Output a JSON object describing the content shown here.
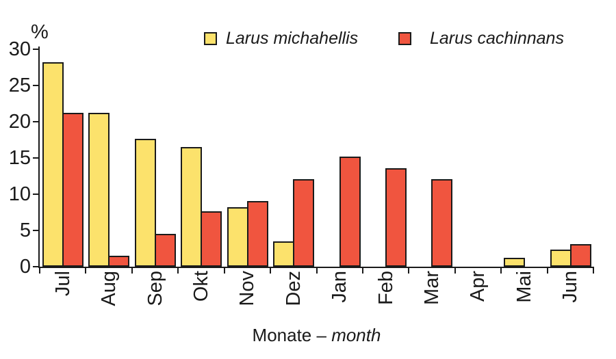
{
  "chart_data": {
    "type": "bar",
    "title": "",
    "ylabel": "%",
    "xlabel": {
      "text": "Monate – month",
      "regular": "Monate –",
      "italic": "month"
    },
    "categories": [
      "Jul",
      "Aug",
      "Sep",
      "Okt",
      "Nov",
      "Dez",
      "Jan",
      "Feb",
      "Mar",
      "Apr",
      "Mai",
      "Jun"
    ],
    "series": [
      {
        "name": "Larus michahellis",
        "color": "#FCE26C",
        "values": [
          28.2,
          21.2,
          17.6,
          16.5,
          8.2,
          3.5,
          0,
          0,
          0,
          0,
          1.2,
          2.4
        ]
      },
      {
        "name": "Larus cachinnans",
        "color": "#F0553F",
        "values": [
          21.2,
          1.5,
          4.5,
          7.6,
          9.1,
          12.1,
          15.2,
          13.6,
          12.1,
          0,
          0,
          3.1
        ]
      }
    ],
    "ylim": [
      0,
      30
    ],
    "yticks": [
      0,
      5,
      10,
      15,
      20,
      25,
      30
    ],
    "grid": false,
    "legend_position": "top",
    "bar_border_color": "#1a1a1a",
    "background_color": "#ffffff"
  }
}
